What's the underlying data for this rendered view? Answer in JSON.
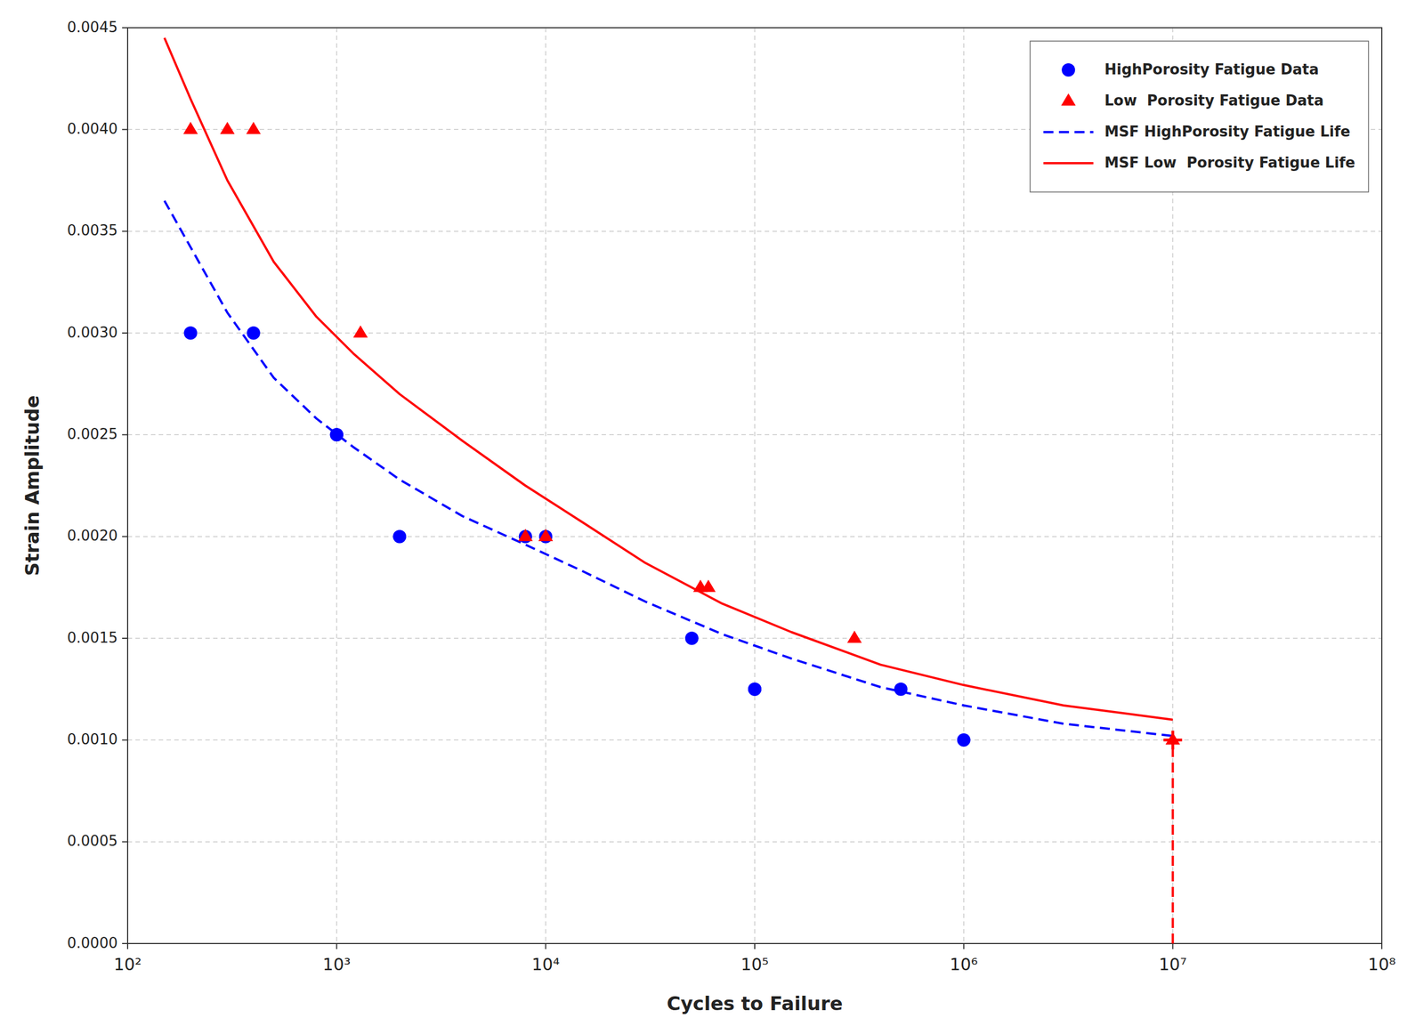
{
  "chart_data": {
    "type": "scatter",
    "xlabel": "Cycles to Failure",
    "ylabel": "Strain Amplitude",
    "log": "x",
    "grid": true,
    "legend": "upper right",
    "xlim": [
      100,
      100000000
    ],
    "xticks": [
      {
        "value": 100,
        "label": "10²"
      },
      {
        "value": 1000,
        "label": "10³"
      },
      {
        "value": 10000,
        "label": "10⁴"
      },
      {
        "value": 100000,
        "label": "10⁵"
      },
      {
        "value": 1000000,
        "label": "10⁶"
      },
      {
        "value": 10000000,
        "label": "10⁷"
      },
      {
        "value": 100000000,
        "label": "10⁸"
      }
    ],
    "ylim": [
      0.0,
      0.0045
    ],
    "yticks": [
      {
        "value": 0.0,
        "label": "0.0000"
      },
      0.0005,
      {
        "value": 0.001,
        "label": "0.0010"
      },
      0.0015,
      {
        "value": 0.002,
        "label": "0.0020"
      },
      0.0025,
      {
        "value": 0.003,
        "label": "0.0030"
      },
      0.0035,
      {
        "value": 0.004,
        "label": "0.0040"
      },
      0.0045
    ],
    "series": [
      {
        "name": "HighPorosity Fatigue Data",
        "type": "scatter",
        "color": "#0000FF",
        "marker": "circle",
        "x": [
          200,
          400,
          1000,
          1000,
          2000,
          8000,
          10000,
          50000,
          100000,
          100000,
          500000,
          1000000
        ],
        "values": [
          0.003,
          0.003,
          0.0025,
          0.0025,
          0.002,
          0.002,
          0.002,
          0.0015,
          0.00125,
          0.00125,
          0.00125,
          0.001
        ]
      },
      {
        "name": "Low  Porosity Fatigue Data",
        "type": "scatter",
        "color": "#FF0000",
        "marker": "triangle",
        "x": [
          200,
          300,
          400,
          1300,
          8000,
          10000,
          55000,
          60000,
          300000,
          10000000
        ],
        "values": [
          0.004,
          0.004,
          0.004,
          0.003,
          0.002,
          0.002,
          0.00175,
          0.00175,
          0.0015,
          0.001
        ]
      },
      {
        "name": "MSF HighPorosity Fatigue Life",
        "type": "line",
        "color": "#0000FF",
        "line_style": "dashed",
        "x": [
          150,
          300,
          500,
          800,
          1200,
          2000,
          4000,
          8000,
          15000,
          30000,
          70000,
          150000,
          400000,
          1000000,
          3000000,
          10000000
        ],
        "values": [
          0.00365,
          0.0031,
          0.00278,
          0.00258,
          0.00244,
          0.00228,
          0.0021,
          0.00196,
          0.00183,
          0.00168,
          0.00152,
          0.0014,
          0.00126,
          0.00117,
          0.00108,
          0.00102
        ]
      },
      {
        "name": "MSF Low  Porosity Fatigue Life",
        "type": "line",
        "color": "#FF0000",
        "line_style": "solid",
        "x": [
          150,
          200,
          300,
          500,
          800,
          1200,
          2000,
          4000,
          8000,
          15000,
          30000,
          70000,
          150000,
          400000,
          1000000,
          3000000,
          10000000
        ],
        "values": [
          0.00445,
          0.00415,
          0.00375,
          0.00335,
          0.00308,
          0.0029,
          0.0027,
          0.00247,
          0.00225,
          0.00207,
          0.00187,
          0.00167,
          0.00153,
          0.00137,
          0.00127,
          0.00117,
          0.0011
        ]
      },
      {
        "type": "line",
        "color": "#FF0000",
        "line_style": "dashed",
        "x": [
          10000000,
          10000000
        ],
        "values": [
          0.0,
          0.001
        ]
      },
      {
        "type": "scatter",
        "color": "#FF0000",
        "marker": "plus",
        "x": [
          10000000
        ],
        "values": [
          0.001
        ]
      }
    ]
  }
}
